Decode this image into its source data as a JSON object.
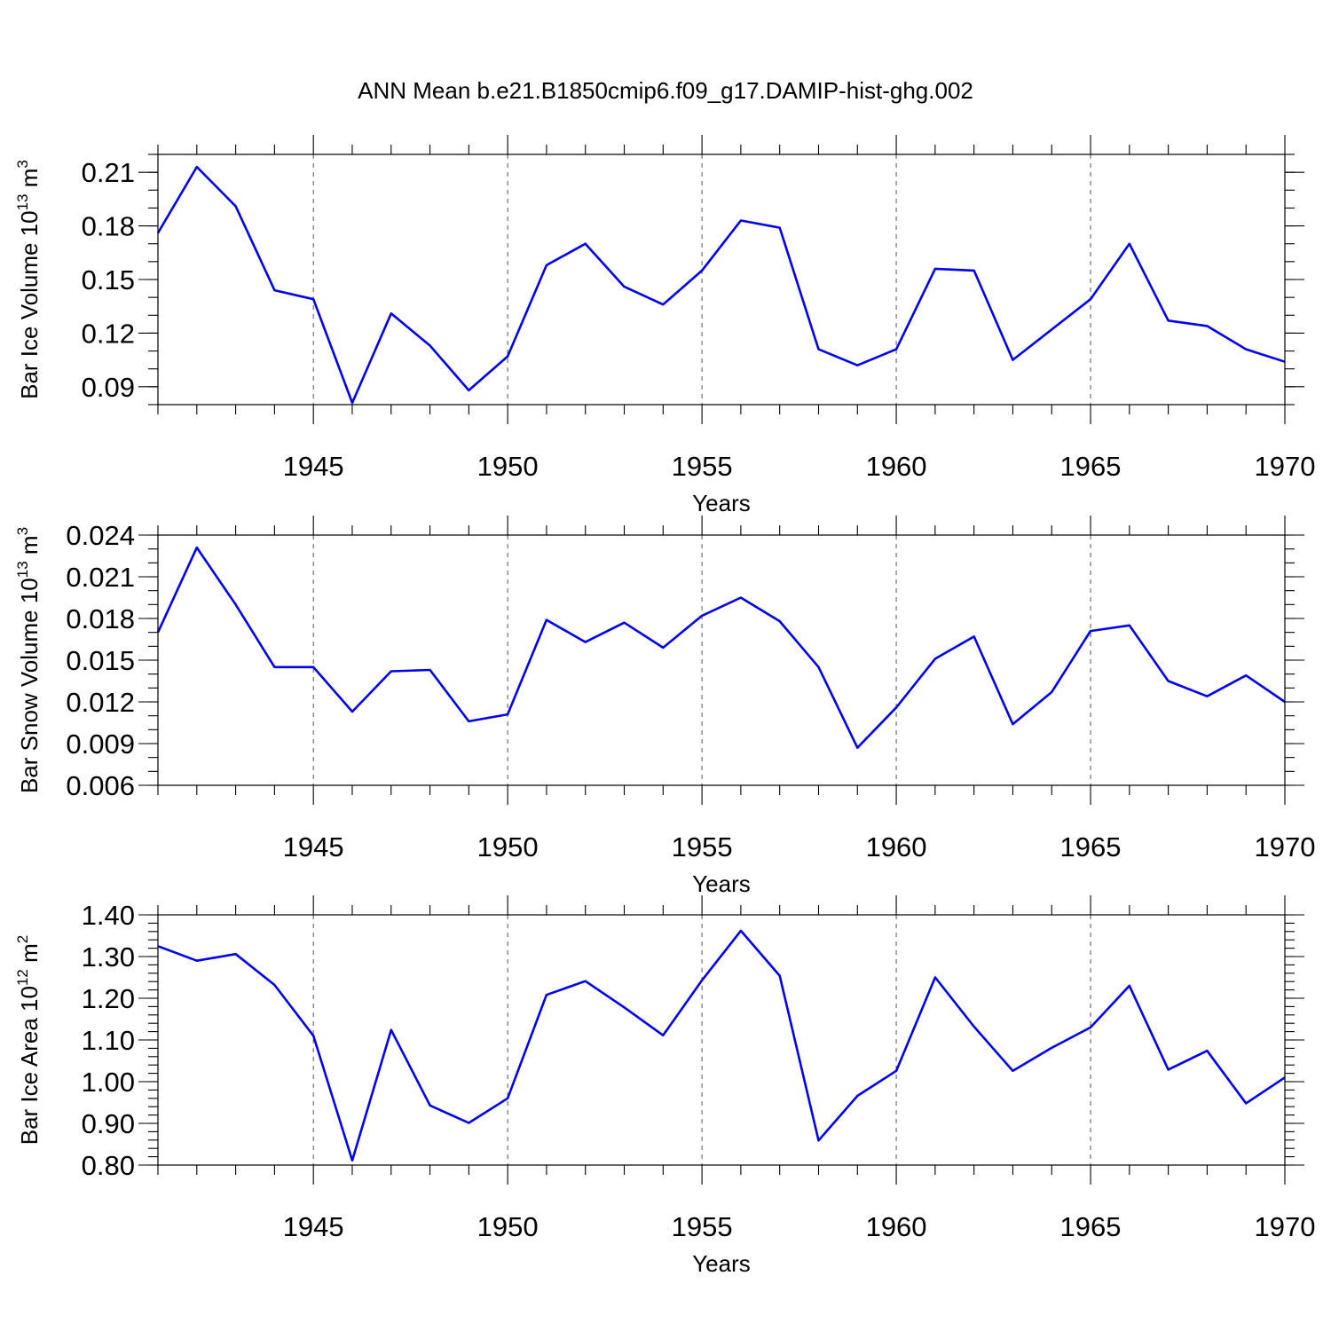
{
  "figure": {
    "title": "ANN Mean b.e21.B1850cmip6.f09_g17.DAMIP-hist-ghg.002"
  },
  "colors": {
    "series": "#0000ee",
    "axes": "#000000",
    "grid": "#555555"
  },
  "chart_data": [
    {
      "type": "line",
      "ylabel": "Bar Ice Volume 10",
      "ylabel_exp": "13",
      "ylabel_unit": " m",
      "ylabel_unit_exp": "3",
      "xlabel": "Years",
      "xlim": [
        1941,
        1970
      ],
      "ylim": [
        0.08,
        0.22
      ],
      "yticks": [
        0.09,
        0.12,
        0.15,
        0.18,
        0.21
      ],
      "ytick_labels": [
        "0.09",
        "0.12",
        "0.15",
        "0.18",
        "0.21"
      ],
      "yminor_step": 0.01,
      "xticks": [
        1945,
        1950,
        1955,
        1960,
        1965,
        1970
      ],
      "xtick_labels": [
        "1945",
        "1950",
        "1955",
        "1960",
        "1965",
        "1970"
      ],
      "grid_x": true,
      "x": [
        1941,
        1942,
        1943,
        1944,
        1945,
        1946,
        1947,
        1948,
        1949,
        1950,
        1951,
        1952,
        1953,
        1954,
        1955,
        1956,
        1957,
        1958,
        1959,
        1960,
        1961,
        1962,
        1963,
        1964,
        1965,
        1966,
        1967,
        1968,
        1969,
        1970
      ],
      "series": [
        {
          "values": [
            0.176,
            0.213,
            0.191,
            0.144,
            0.139,
            0.081,
            0.131,
            0.113,
            0.088,
            0.107,
            0.158,
            0.17,
            0.146,
            0.136,
            0.155,
            0.183,
            0.179,
            0.111,
            0.102,
            0.111,
            0.156,
            0.155,
            0.105,
            0.122,
            0.139,
            0.17,
            0.127,
            0.124,
            0.111,
            0.104
          ]
        }
      ]
    },
    {
      "type": "line",
      "ylabel": "Bar Snow Volume 10",
      "ylabel_exp": "13",
      "ylabel_unit": " m",
      "ylabel_unit_exp": "3",
      "xlabel": "Years",
      "xlim": [
        1941,
        1970
      ],
      "ylim": [
        0.006,
        0.024
      ],
      "yticks": [
        0.006,
        0.009,
        0.012,
        0.015,
        0.018,
        0.021,
        0.024
      ],
      "ytick_labels": [
        "0.006",
        "0.009",
        "0.012",
        "0.015",
        "0.018",
        "0.021",
        "0.024"
      ],
      "yminor_step": 0.001,
      "xticks": [
        1945,
        1950,
        1955,
        1960,
        1965,
        1970
      ],
      "xtick_labels": [
        "1945",
        "1950",
        "1955",
        "1960",
        "1965",
        "1970"
      ],
      "grid_x": true,
      "x": [
        1941,
        1942,
        1943,
        1944,
        1945,
        1946,
        1947,
        1948,
        1949,
        1950,
        1951,
        1952,
        1953,
        1954,
        1955,
        1956,
        1957,
        1958,
        1959,
        1960,
        1961,
        1962,
        1963,
        1964,
        1965,
        1966,
        1967,
        1968,
        1969,
        1970
      ],
      "series": [
        {
          "values": [
            0.017,
            0.0231,
            0.019,
            0.0145,
            0.0145,
            0.0113,
            0.0142,
            0.0143,
            0.0106,
            0.0111,
            0.0179,
            0.0163,
            0.0177,
            0.0159,
            0.0182,
            0.0195,
            0.0178,
            0.0145,
            0.0087,
            0.0116,
            0.0151,
            0.0167,
            0.0104,
            0.0127,
            0.0171,
            0.0175,
            0.0135,
            0.0124,
            0.0139,
            0.012
          ]
        }
      ]
    },
    {
      "type": "line",
      "ylabel": "Bar Ice Area 10",
      "ylabel_exp": "12",
      "ylabel_unit": " m",
      "ylabel_unit_exp": "2",
      "xlabel": "Years",
      "xlim": [
        1941,
        1970
      ],
      "ylim": [
        0.8,
        1.4
      ],
      "yticks": [
        0.8,
        0.9,
        1.0,
        1.1,
        1.2,
        1.3,
        1.4
      ],
      "ytick_labels": [
        "0.80",
        "0.90",
        "1.00",
        "1.10",
        "1.20",
        "1.30",
        "1.40"
      ],
      "yminor_step": 0.02,
      "xticks": [
        1945,
        1950,
        1955,
        1960,
        1965,
        1970
      ],
      "xtick_labels": [
        "1945",
        "1950",
        "1955",
        "1960",
        "1965",
        "1970"
      ],
      "grid_x": true,
      "x": [
        1941,
        1942,
        1943,
        1944,
        1945,
        1946,
        1947,
        1948,
        1949,
        1950,
        1951,
        1952,
        1953,
        1954,
        1955,
        1956,
        1957,
        1958,
        1959,
        1960,
        1961,
        1962,
        1963,
        1964,
        1965,
        1966,
        1967,
        1968,
        1969,
        1970
      ],
      "series": [
        {
          "values": [
            1.325,
            1.29,
            1.306,
            1.232,
            1.11,
            0.811,
            1.124,
            0.943,
            0.901,
            0.96,
            1.208,
            1.241,
            1.178,
            1.111,
            1.243,
            1.362,
            1.254,
            0.859,
            0.966,
            1.026,
            1.25,
            1.132,
            1.026,
            1.081,
            1.13,
            1.23,
            1.029,
            1.074,
            0.948,
            1.01
          ]
        }
      ]
    }
  ]
}
